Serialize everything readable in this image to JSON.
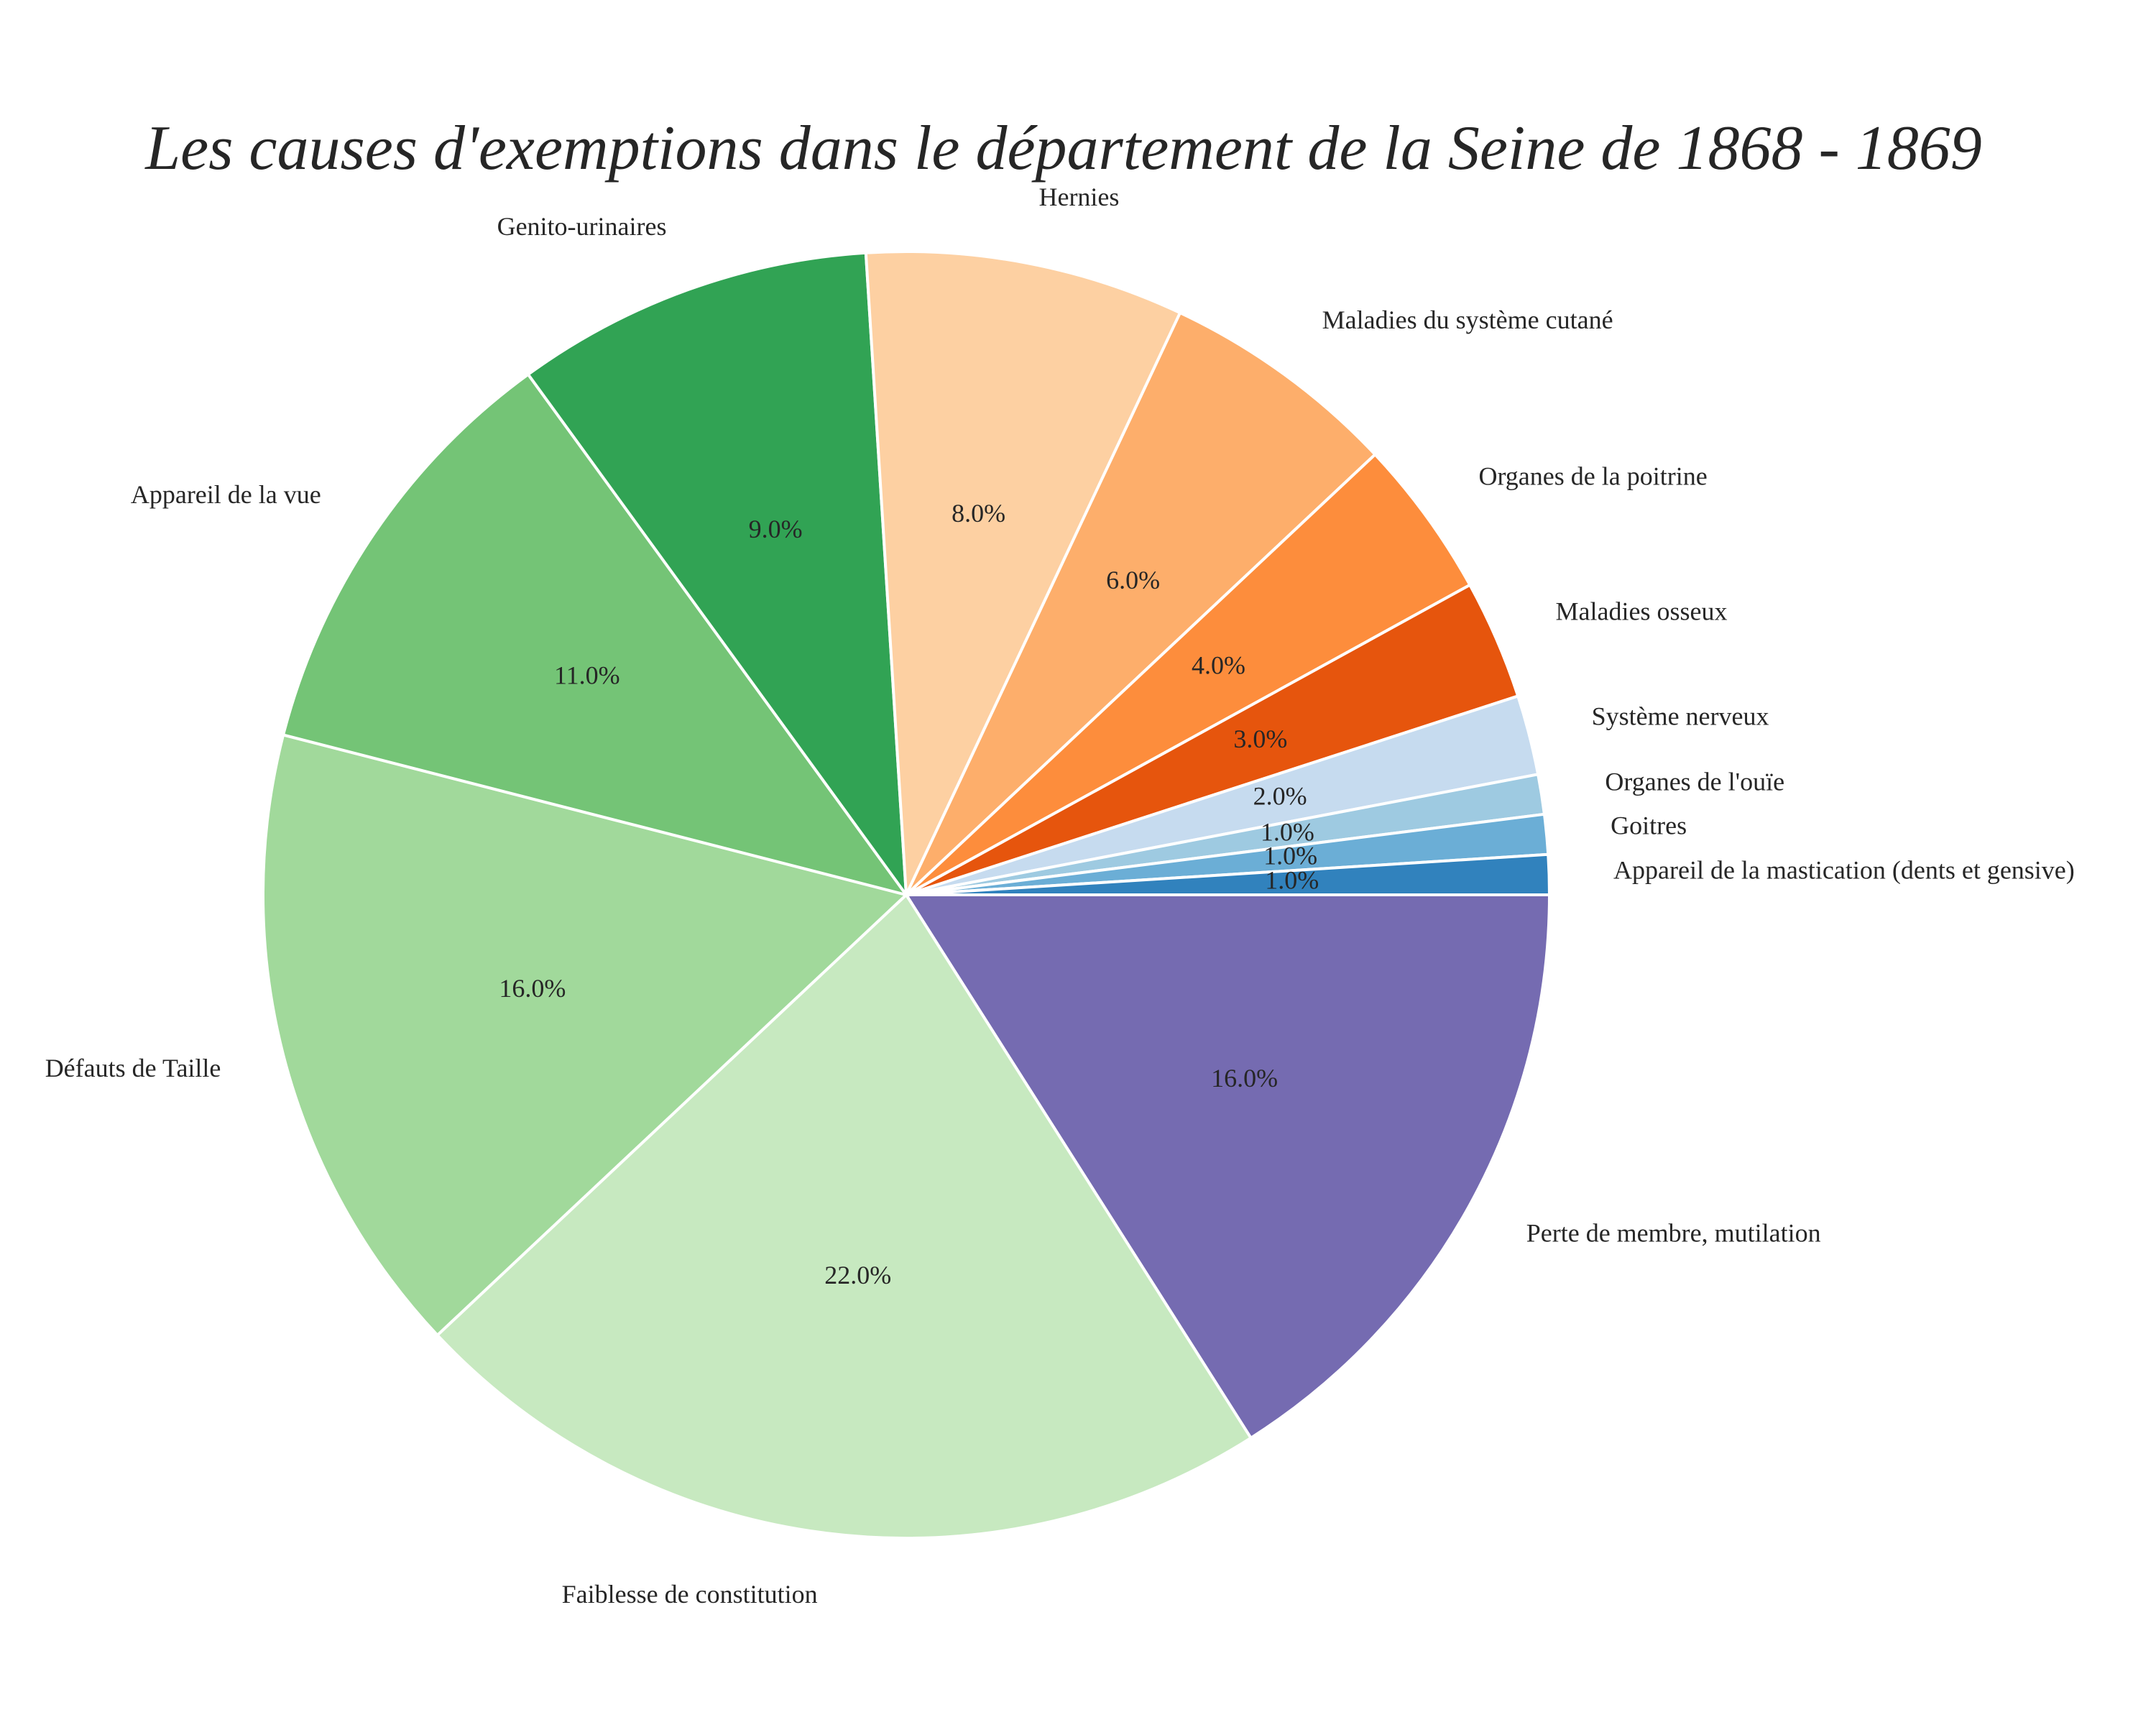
{
  "chart_data": {
    "type": "pie",
    "title": "Les causes d'exemptions dans le département de la Seine de 1868 - 1869",
    "categories": [
      "Perte de membre, mutilation",
      "Faiblesse de constitution",
      "Défauts de Taille",
      "Appareil de la vue",
      "Genito-urinaires",
      "Hernies",
      "Maladies du système cutané",
      "Organes de la poitrine",
      "Maladies osseux",
      "Système nerveux",
      "Organes de l'ouïe",
      "Goitres",
      "Appareil de la mastication (dents et gensive)"
    ],
    "values": [
      16,
      22,
      16,
      11,
      9,
      8,
      6,
      4,
      3,
      2,
      1,
      1,
      1
    ],
    "value_labels": [
      "16.0%",
      "22.0%",
      "16.0%",
      "11.0%",
      "9.0%",
      "8.0%",
      "6.0%",
      "4.0%",
      "3.0%",
      "2.0%",
      "1.0%",
      "1.0%",
      "1.0%"
    ],
    "colors": [
      "#756bb1",
      "#c7e9c0",
      "#a1d99b",
      "#74c476",
      "#31a354",
      "#fdd0a2",
      "#fdae6b",
      "#fd8d3c",
      "#e6550d",
      "#c6dbef",
      "#9ecae1",
      "#6baed6",
      "#3182bd"
    ],
    "start_angle_deg": 0,
    "direction": "clockwise",
    "legend": "none"
  }
}
